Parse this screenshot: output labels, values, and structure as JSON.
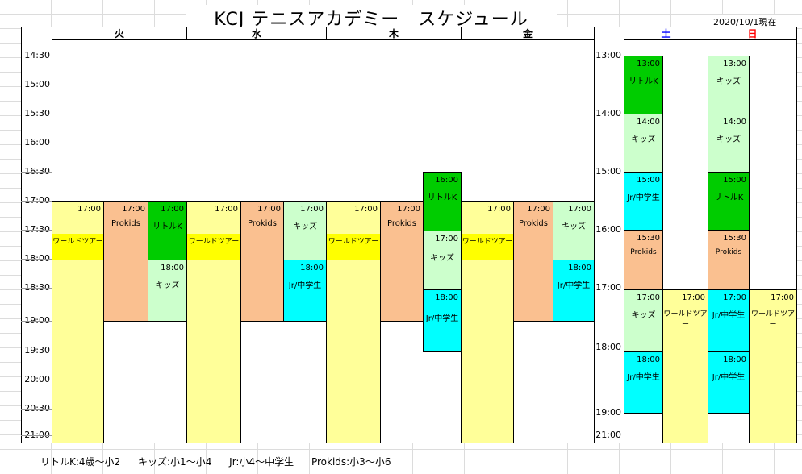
{
  "title": "KCJ テニスアカデミー　スケジュール",
  "as_of": "2020/10/1現在",
  "weekday_headers": [
    "火",
    "水",
    "木",
    "金"
  ],
  "weekend_headers": [
    {
      "label": "土",
      "color": "#0000ff"
    },
    {
      "label": "日",
      "color": "#ff0000"
    }
  ],
  "weekday_times": [
    "14:30",
    "15:00",
    "15:30",
    "16:00",
    "16:30",
    "17:00",
    "17:30",
    "18:00",
    "18:30",
    "19:00",
    "19:30",
    "20:00",
    "20:30",
    "21:00"
  ],
  "weekend_times": [
    "13:00",
    "14:00",
    "15:00",
    "16:00",
    "17:00",
    "18:00",
    "19:00",
    "21:00"
  ],
  "weekday_blocks": {
    "tue": [
      {
        "time": "17:00",
        "name": "ワールドツアー",
        "color": "#ffff99"
      },
      {
        "time": "17:00",
        "name": "Prokids",
        "color": "#fac090"
      },
      {
        "time": "17:00",
        "name": "リトルK",
        "color": "#00cc00"
      },
      {
        "time": "18:00",
        "name": "キッズ",
        "color": "#ccffcc"
      }
    ],
    "wed": [
      {
        "time": "17:00",
        "name": "ワールドツアー",
        "color": "#ffff99"
      },
      {
        "time": "17:00",
        "name": "Prokids",
        "color": "#fac090"
      },
      {
        "time": "17:00",
        "name": "キッズ",
        "color": "#ccffcc"
      },
      {
        "time": "18:00",
        "name": "Jr/中学生",
        "color": "#00ffff"
      }
    ],
    "thu": [
      {
        "time": "17:00",
        "name": "ワールドツアー",
        "color": "#ffff99"
      },
      {
        "time": "17:00",
        "name": "Prokids",
        "color": "#fac090"
      },
      {
        "time": "16:00",
        "name": "リトルK",
        "color": "#00cc00"
      },
      {
        "time": "17:00",
        "name": "キッズ",
        "color": "#ccffcc"
      },
      {
        "time": "18:00",
        "name": "Jr/中学生",
        "color": "#00ffff"
      }
    ],
    "fri": [
      {
        "time": "17:00",
        "name": "ワールドツアー",
        "color": "#ffff99"
      },
      {
        "time": "17:00",
        "name": "Prokids",
        "color": "#fac090"
      },
      {
        "time": "17:00",
        "name": "キッズ",
        "color": "#ccffcc"
      },
      {
        "time": "18:00",
        "name": "Jr/中学生",
        "color": "#00ffff"
      }
    ]
  },
  "weekend_blocks": {
    "sat": [
      {
        "time": "13:00",
        "name": "リトルK",
        "color": "#00cc00"
      },
      {
        "time": "14:00",
        "name": "キッズ",
        "color": "#ccffcc"
      },
      {
        "time": "15:00",
        "name": "Jr/中学生",
        "color": "#00ffff"
      },
      {
        "time": "15:30",
        "name": "Prokids",
        "color": "#fac090"
      },
      {
        "time": "17:00",
        "name": "キッズ",
        "color": "#ccffcc"
      },
      {
        "time": "18:00",
        "name": "Jr/中学生",
        "color": "#00ffff"
      },
      {
        "time": "17:00",
        "name": "ワールドツアー",
        "color": "#ffff99"
      }
    ],
    "sun": [
      {
        "time": "13:00",
        "name": "キッズ",
        "color": "#ccffcc"
      },
      {
        "time": "14:00",
        "name": "キッズ",
        "color": "#ccffcc"
      },
      {
        "time": "15:00",
        "name": "リトルK",
        "color": "#00cc00"
      },
      {
        "time": "15:30",
        "name": "Prokids",
        "color": "#fac090"
      },
      {
        "time": "17:00",
        "name": "Jr/中学生",
        "color": "#00ffff"
      },
      {
        "time": "18:00",
        "name": "Jr/中学生",
        "color": "#00ffff"
      },
      {
        "time": "17:00",
        "name": "ワールドツアー",
        "color": "#ffff99"
      }
    ]
  },
  "legend": [
    "リトルK:4歳～小2",
    "キッズ:小1～小4",
    "Jr:小4～中学生",
    "Prokids:小3～小6"
  ]
}
